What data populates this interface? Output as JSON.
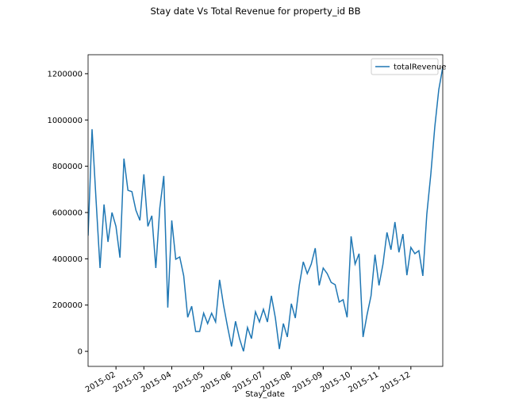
{
  "chart_data": {
    "type": "line",
    "title": "Stay date Vs Total Revenue for property_id BB",
    "x_label": "Stay_date",
    "legend": "upper right",
    "categories": [
      null,
      null,
      null,
      null,
      null,
      null,
      null,
      "2015-02",
      null,
      null,
      null,
      null,
      null,
      null,
      "2015-03",
      null,
      null,
      null,
      null,
      null,
      null,
      "2015-04",
      null,
      null,
      null,
      null,
      null,
      null,
      null,
      "2015-05",
      null,
      null,
      null,
      null,
      null,
      null,
      "2015-06",
      null,
      null,
      null,
      null,
      null,
      null,
      null,
      "2015-07",
      null,
      null,
      null,
      null,
      null,
      null,
      "2015-08",
      null,
      null,
      null,
      null,
      null,
      null,
      null,
      "2015-09",
      null,
      null,
      null,
      null,
      null,
      null,
      "2015-10",
      null,
      null,
      null,
      null,
      null,
      null,
      "2015-11",
      null,
      null,
      null,
      null,
      null,
      null,
      null,
      "2015-12",
      null,
      null,
      null,
      null,
      null,
      null,
      null,
      null
    ],
    "series": [
      {
        "name": "totalRevenue",
        "color": "#1f77b4",
        "values": [
          500000,
          960000,
          655000,
          360000,
          635000,
          473000,
          600000,
          540000,
          405000,
          833000,
          696000,
          690000,
          610000,
          566000,
          765000,
          540000,
          586000,
          360000,
          620000,
          758000,
          189000,
          566000,
          398000,
          408000,
          326000,
          147000,
          195000,
          86000,
          86000,
          165000,
          120000,
          165000,
          127000,
          309000,
          199000,
          106000,
          21000,
          130000,
          55000,
          0,
          103000,
          55000,
          171000,
          127000,
          182000,
          127000,
          240000,
          144000,
          10000,
          120000,
          62000,
          206000,
          144000,
          285000,
          387000,
          336000,
          377000,
          446000,
          285000,
          360000,
          336000,
          298000,
          288000,
          213000,
          223000,
          147000,
          497000,
          377000,
          422000,
          62000,
          158000,
          240000,
          418000,
          285000,
          377000,
          514000,
          439000,
          559000,
          428000,
          507000,
          329000,
          449000,
          422000,
          435000,
          326000,
          593000,
          765000,
          970000,
          1131000,
          1227000
        ]
      }
    ],
    "ylim": [
      -65000,
      1282000
    ],
    "yticks": [
      0,
      200000,
      400000,
      600000,
      800000,
      1000000,
      1200000
    ]
  }
}
